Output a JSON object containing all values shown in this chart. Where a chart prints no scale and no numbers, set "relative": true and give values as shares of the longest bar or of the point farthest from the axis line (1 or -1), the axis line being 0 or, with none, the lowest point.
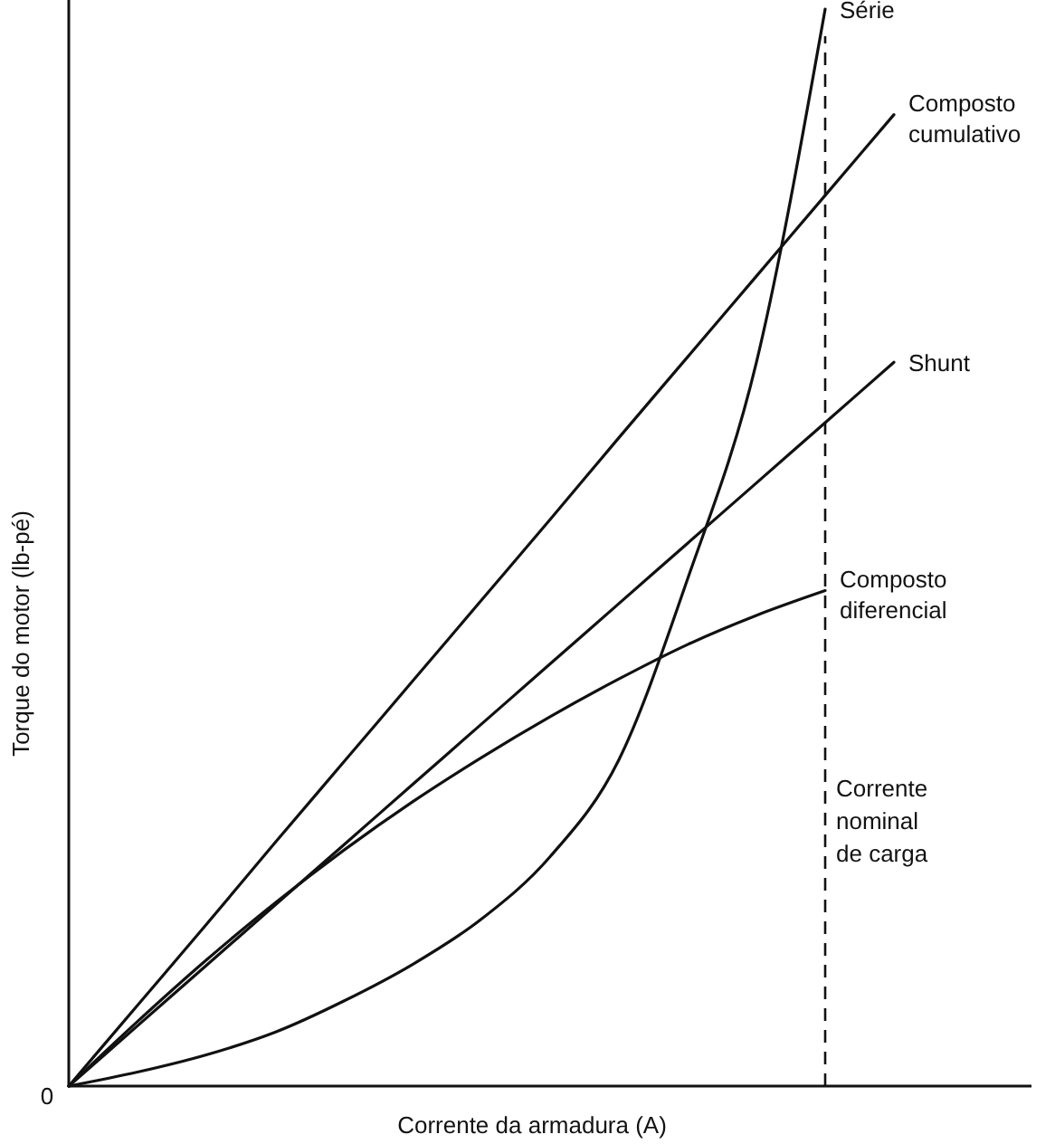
{
  "chart_data": {
    "type": "line",
    "relative": true,
    "xlabel": "Corrente da armadura (A)",
    "ylabel": "Torque do motor (lb-pé)",
    "categories": [
      null,
      null,
      null,
      null,
      null,
      null,
      null,
      null,
      null,
      null,
      null,
      null,
      null,
      null,
      null
    ],
    "series": [
      {
        "name": "Série",
        "color": "#111111",
        "values": [
          0,
          0.013,
          0.029,
          0.05,
          0.079,
          0.113,
          0.155,
          0.213,
          0.303,
          0.471,
          0.672,
          1,
          null,
          null,
          null
        ]
      },
      {
        "name": "Composto cumulativo",
        "color": "#111111",
        "values": [
          0,
          0.075,
          0.15,
          0.226,
          0.301,
          0.376,
          0.451,
          0.526,
          0.602,
          0.677,
          0.752,
          0.827,
          0.902,
          null,
          null
        ]
      },
      {
        "name": "Shunt",
        "color": "#111111",
        "values": [
          0,
          0.056,
          0.112,
          0.168,
          0.224,
          0.28,
          0.336,
          0.392,
          0.448,
          0.504,
          0.56,
          0.616,
          0.672,
          null,
          null
        ]
      },
      {
        "name": "Composto diferencial",
        "color": "#111111",
        "values": [
          0,
          0.06,
          0.117,
          0.17,
          0.219,
          0.264,
          0.305,
          0.343,
          0.378,
          0.41,
          0.437,
          0.46,
          null,
          null,
          null
        ]
      }
    ],
    "annotations": [
      "0",
      "Corrente nominal de carga"
    ],
    "marker": "none",
    "line_style": "solid"
  }
}
